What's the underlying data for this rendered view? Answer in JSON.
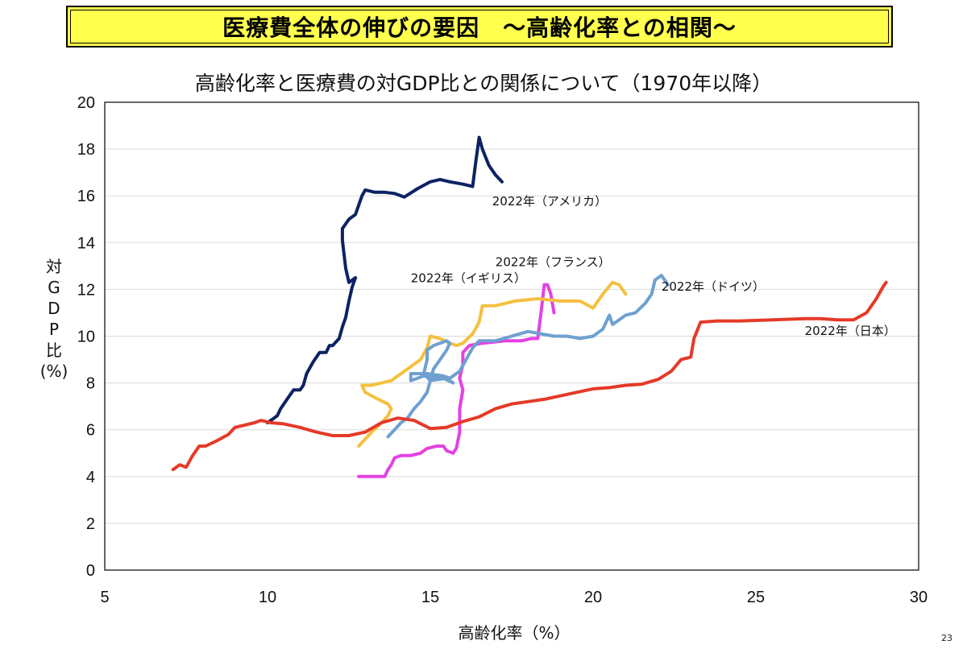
{
  "header": {
    "banner": "医療費全体の伸びの要因　～高齢化率との相関～"
  },
  "page_number": "23",
  "chart_data": {
    "type": "line",
    "title": "高齢化率と医療費の対GDP比との関係について（1970年以降）",
    "xlabel": "高齢化率（%）",
    "ylabel_chars": [
      "対",
      "G",
      "D",
      "P",
      "比",
      "(%)"
    ],
    "xlim": [
      5,
      30
    ],
    "ylim": [
      0,
      20
    ],
    "xticks": [
      5,
      10,
      15,
      20,
      25,
      30
    ],
    "yticks": [
      0,
      2,
      4,
      6,
      8,
      10,
      12,
      14,
      16,
      18,
      20
    ],
    "grid": "horizontal",
    "series": [
      {
        "name": "2022年（アメリカ）",
        "color": "#0d2263",
        "points": [
          [
            10.0,
            6.3
          ],
          [
            10.2,
            6.5
          ],
          [
            10.3,
            6.6
          ],
          [
            10.4,
            6.9
          ],
          [
            10.6,
            7.3
          ],
          [
            10.8,
            7.7
          ],
          [
            11.0,
            7.7
          ],
          [
            11.1,
            7.9
          ],
          [
            11.2,
            8.4
          ],
          [
            11.4,
            8.9
          ],
          [
            11.6,
            9.3
          ],
          [
            11.8,
            9.3
          ],
          [
            11.9,
            9.6
          ],
          [
            12.0,
            9.6
          ],
          [
            12.2,
            9.9
          ],
          [
            12.3,
            10.4
          ],
          [
            12.4,
            10.8
          ],
          [
            12.5,
            11.5
          ],
          [
            12.6,
            12.1
          ],
          [
            12.7,
            12.5
          ],
          [
            12.5,
            12.3
          ],
          [
            12.4,
            12.9
          ],
          [
            12.3,
            14.1
          ],
          [
            12.3,
            14.6
          ],
          [
            12.5,
            15.0
          ],
          [
            12.7,
            15.2
          ],
          [
            12.8,
            15.6
          ],
          [
            12.9,
            16.0
          ],
          [
            13.0,
            16.25
          ],
          [
            13.3,
            16.15
          ],
          [
            13.6,
            16.15
          ],
          [
            13.9,
            16.1
          ],
          [
            14.2,
            15.95
          ],
          [
            14.6,
            16.3
          ],
          [
            15.0,
            16.6
          ],
          [
            15.3,
            16.7
          ],
          [
            15.6,
            16.6
          ],
          [
            16.0,
            16.5
          ],
          [
            16.3,
            16.4
          ],
          [
            16.4,
            17.5
          ],
          [
            16.5,
            18.5
          ],
          [
            16.6,
            18.0
          ],
          [
            16.8,
            17.3
          ],
          [
            17.0,
            16.9
          ],
          [
            17.2,
            16.6
          ]
        ],
        "label": {
          "text": "2022年（アメリカ）",
          "x": 16.9,
          "y": 15.6
        }
      },
      {
        "name": "2022年（イギリス）",
        "color": "#e342e3",
        "points": [
          [
            12.8,
            4.0
          ],
          [
            13.1,
            4.0
          ],
          [
            13.4,
            4.0
          ],
          [
            13.6,
            4.0
          ],
          [
            13.7,
            4.3
          ],
          [
            13.8,
            4.5
          ],
          [
            13.9,
            4.8
          ],
          [
            14.1,
            4.9
          ],
          [
            14.4,
            4.9
          ],
          [
            14.7,
            5.0
          ],
          [
            14.9,
            5.2
          ],
          [
            15.2,
            5.3
          ],
          [
            15.4,
            5.3
          ],
          [
            15.5,
            5.1
          ],
          [
            15.7,
            5.0
          ],
          [
            15.8,
            5.2
          ],
          [
            15.9,
            5.9
          ],
          [
            15.9,
            6.9
          ],
          [
            16.0,
            7.7
          ],
          [
            15.9,
            8.2
          ],
          [
            16.0,
            8.8
          ],
          [
            16.0,
            9.3
          ],
          [
            16.2,
            9.6
          ],
          [
            16.6,
            9.7
          ],
          [
            17.3,
            9.8
          ],
          [
            17.8,
            9.8
          ],
          [
            18.1,
            9.9
          ],
          [
            18.3,
            9.9
          ],
          [
            18.4,
            11.0
          ],
          [
            18.5,
            12.2
          ],
          [
            18.6,
            12.2
          ],
          [
            18.7,
            11.8
          ],
          [
            18.8,
            11.0
          ]
        ],
        "label": {
          "text": "2022年（イギリス）",
          "x": 14.4,
          "y": 12.3
        }
      },
      {
        "name": "2022年（フランス）",
        "color": "#f5c040",
        "points": [
          [
            12.8,
            5.3
          ],
          [
            13.0,
            5.6
          ],
          [
            13.2,
            5.9
          ],
          [
            13.5,
            6.3
          ],
          [
            13.7,
            6.6
          ],
          [
            13.8,
            6.9
          ],
          [
            13.7,
            7.1
          ],
          [
            13.4,
            7.3
          ],
          [
            13.0,
            7.6
          ],
          [
            12.9,
            7.9
          ],
          [
            13.2,
            7.9
          ],
          [
            13.5,
            8.0
          ],
          [
            13.8,
            8.1
          ],
          [
            14.0,
            8.3
          ],
          [
            14.3,
            8.6
          ],
          [
            14.5,
            8.8
          ],
          [
            14.7,
            9.0
          ],
          [
            14.9,
            9.5
          ],
          [
            15.0,
            10.0
          ],
          [
            15.3,
            9.9
          ],
          [
            15.6,
            9.7
          ],
          [
            15.8,
            9.6
          ],
          [
            16.0,
            9.7
          ],
          [
            16.3,
            10.1
          ],
          [
            16.5,
            10.6
          ],
          [
            16.6,
            11.3
          ],
          [
            17.0,
            11.3
          ],
          [
            17.6,
            11.5
          ],
          [
            18.3,
            11.6
          ],
          [
            19.0,
            11.5
          ],
          [
            19.6,
            11.5
          ],
          [
            20.0,
            11.2
          ],
          [
            20.3,
            11.8
          ],
          [
            20.6,
            12.3
          ],
          [
            20.8,
            12.2
          ],
          [
            21.0,
            11.8
          ]
        ],
        "label": {
          "text": "2022年（フランス）",
          "x": 17.0,
          "y": 13.0
        }
      },
      {
        "name": "2022年（ドイツ）",
        "color": "#6fa0d0",
        "points": [
          [
            13.7,
            5.7
          ],
          [
            13.9,
            6.0
          ],
          [
            14.1,
            6.3
          ],
          [
            14.3,
            6.5
          ],
          [
            14.5,
            6.9
          ],
          [
            14.7,
            7.2
          ],
          [
            14.9,
            7.6
          ],
          [
            15.0,
            8.1
          ],
          [
            15.1,
            8.6
          ],
          [
            15.3,
            9.0
          ],
          [
            15.5,
            9.4
          ],
          [
            15.6,
            9.7
          ],
          [
            15.5,
            9.8
          ],
          [
            15.1,
            9.6
          ],
          [
            14.9,
            9.4
          ],
          [
            14.9,
            9.0
          ],
          [
            14.8,
            8.4
          ],
          [
            15.0,
            8.1
          ],
          [
            15.5,
            8.2
          ],
          [
            15.7,
            8.0
          ],
          [
            15.4,
            8.2
          ],
          [
            14.8,
            8.3
          ],
          [
            14.4,
            8.1
          ],
          [
            14.4,
            8.4
          ],
          [
            14.9,
            8.4
          ],
          [
            15.4,
            8.3
          ],
          [
            15.6,
            8.2
          ],
          [
            15.9,
            8.5
          ],
          [
            16.1,
            9.0
          ],
          [
            16.3,
            9.5
          ],
          [
            16.5,
            9.8
          ],
          [
            17.0,
            9.8
          ],
          [
            17.5,
            10.0
          ],
          [
            18.0,
            10.2
          ],
          [
            18.4,
            10.1
          ],
          [
            18.8,
            10.0
          ],
          [
            19.2,
            10.0
          ],
          [
            19.6,
            9.9
          ],
          [
            20.0,
            10.0
          ],
          [
            20.3,
            10.3
          ],
          [
            20.5,
            10.9
          ],
          [
            20.6,
            10.5
          ],
          [
            20.8,
            10.7
          ],
          [
            21.0,
            10.9
          ],
          [
            21.3,
            11.0
          ],
          [
            21.6,
            11.4
          ],
          [
            21.8,
            11.8
          ],
          [
            21.9,
            12.4
          ],
          [
            22.1,
            12.6
          ],
          [
            22.3,
            12.2
          ]
        ],
        "label": {
          "text": "2022年（ドイツ）",
          "x": 22.1,
          "y": 11.95
        }
      },
      {
        "name": "2022年（日本）",
        "color": "#e43a28",
        "points": [
          [
            7.1,
            4.3
          ],
          [
            7.3,
            4.5
          ],
          [
            7.5,
            4.4
          ],
          [
            7.7,
            4.9
          ],
          [
            7.9,
            5.3
          ],
          [
            8.1,
            5.3
          ],
          [
            8.4,
            5.5
          ],
          [
            8.8,
            5.8
          ],
          [
            9.0,
            6.1
          ],
          [
            9.3,
            6.2
          ],
          [
            9.6,
            6.3
          ],
          [
            9.8,
            6.4
          ],
          [
            10.1,
            6.3
          ],
          [
            10.5,
            6.25
          ],
          [
            11.0,
            6.1
          ],
          [
            11.5,
            5.9
          ],
          [
            12.0,
            5.75
          ],
          [
            12.5,
            5.75
          ],
          [
            13.0,
            5.9
          ],
          [
            13.5,
            6.3
          ],
          [
            14.0,
            6.5
          ],
          [
            14.5,
            6.4
          ],
          [
            15.0,
            6.05
          ],
          [
            15.5,
            6.1
          ],
          [
            16.0,
            6.35
          ],
          [
            16.5,
            6.55
          ],
          [
            17.0,
            6.9
          ],
          [
            17.5,
            7.1
          ],
          [
            18.0,
            7.2
          ],
          [
            18.5,
            7.3
          ],
          [
            19.0,
            7.45
          ],
          [
            19.5,
            7.6
          ],
          [
            20.0,
            7.75
          ],
          [
            20.5,
            7.8
          ],
          [
            21.0,
            7.9
          ],
          [
            21.5,
            7.95
          ],
          [
            22.0,
            8.15
          ],
          [
            22.4,
            8.5
          ],
          [
            22.7,
            9.0
          ],
          [
            23.0,
            9.1
          ],
          [
            23.1,
            9.9
          ],
          [
            23.3,
            10.6
          ],
          [
            23.8,
            10.65
          ],
          [
            24.5,
            10.65
          ],
          [
            25.5,
            10.7
          ],
          [
            26.5,
            10.75
          ],
          [
            27.0,
            10.75
          ],
          [
            27.5,
            10.7
          ],
          [
            28.0,
            10.7
          ],
          [
            28.4,
            11.0
          ],
          [
            28.7,
            11.6
          ],
          [
            28.9,
            12.1
          ],
          [
            29.0,
            12.3
          ]
        ],
        "label": {
          "text": "2022年（日本）",
          "x": 26.5,
          "y": 10.05
        }
      }
    ]
  }
}
